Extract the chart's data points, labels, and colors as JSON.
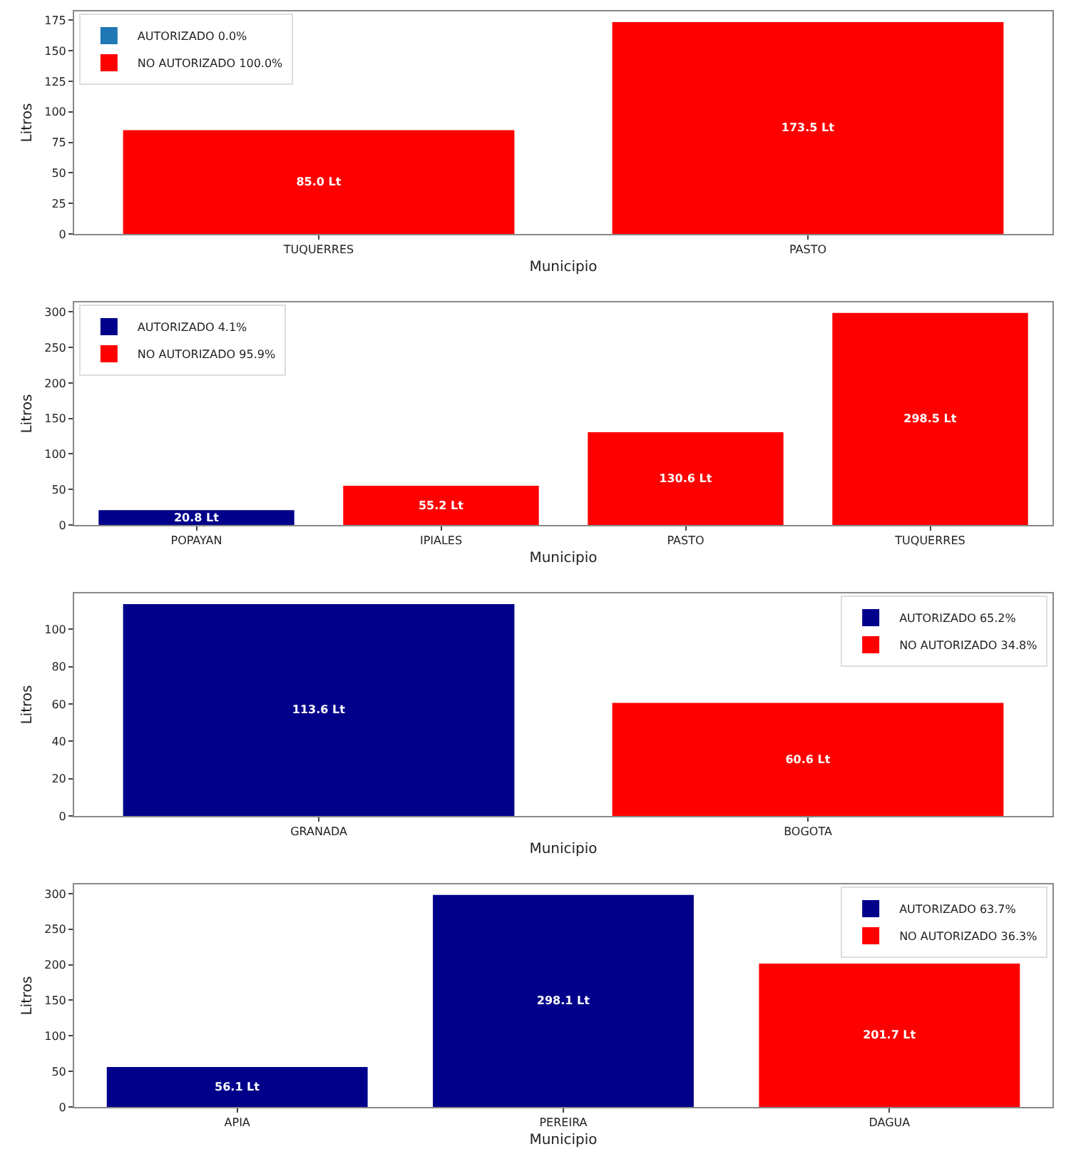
{
  "chart_data": [
    {
      "type": "bar",
      "categories": [
        "TUQUERRES",
        "PASTO"
      ],
      "xlabel": "Municipio",
      "ylabel": "Litros",
      "ylim": [
        0,
        182.2
      ],
      "yticks": [
        0,
        25,
        50,
        75,
        100,
        125,
        150,
        175
      ],
      "legend": "top left",
      "grid": false,
      "series": [
        {
          "name": "AUTORIZADO 0.0%",
          "color": "#1f77b4",
          "values": [
            null,
            null
          ],
          "value_labels": [
            null,
            null
          ]
        },
        {
          "name": "NO AUTORIZADO 100.0%",
          "color": "#ff0000",
          "values": [
            85.0,
            173.5
          ],
          "value_labels": [
            "85.0 Lt",
            "173.5 Lt"
          ]
        }
      ]
    },
    {
      "type": "bar",
      "categories": [
        "POPAYAN",
        "IPIALES",
        "PASTO",
        "TUQUERRES"
      ],
      "xlabel": "Municipio",
      "ylabel": "Litros",
      "ylim": [
        0,
        313.4
      ],
      "yticks": [
        0,
        50,
        100,
        150,
        200,
        250,
        300
      ],
      "legend": "top left",
      "grid": false,
      "series": [
        {
          "name": "AUTORIZADO 4.1%",
          "color": "#00008b",
          "values": [
            20.8,
            null,
            null,
            null
          ],
          "value_labels": [
            "20.8 Lt",
            null,
            null,
            null
          ]
        },
        {
          "name": "NO AUTORIZADO 95.9%",
          "color": "#ff0000",
          "values": [
            null,
            55.2,
            130.6,
            298.5
          ],
          "value_labels": [
            null,
            "55.2 Lt",
            "130.6 Lt",
            "298.5 Lt"
          ]
        }
      ]
    },
    {
      "type": "bar",
      "categories": [
        "GRANADA",
        "BOGOTA"
      ],
      "xlabel": "Municipio",
      "ylabel": "Litros",
      "ylim": [
        0,
        119.3
      ],
      "yticks": [
        0,
        20,
        40,
        60,
        80,
        100
      ],
      "legend": "top right",
      "grid": false,
      "series": [
        {
          "name": "AUTORIZADO 65.2%",
          "color": "#00008b",
          "values": [
            113.6,
            null
          ],
          "value_labels": [
            "113.6 Lt",
            null
          ]
        },
        {
          "name": "NO AUTORIZADO 34.8%",
          "color": "#ff0000",
          "values": [
            null,
            60.6
          ],
          "value_labels": [
            null,
            "60.6 Lt"
          ]
        }
      ]
    },
    {
      "type": "bar",
      "categories": [
        "APIA",
        "PEREIRA",
        "DAGUA"
      ],
      "xlabel": "Municipio",
      "ylabel": "Litros",
      "ylim": [
        0,
        313.0
      ],
      "yticks": [
        0,
        50,
        100,
        150,
        200,
        250,
        300
      ],
      "legend": "top right",
      "grid": false,
      "series": [
        {
          "name": "AUTORIZADO 63.7%",
          "color": "#00008b",
          "values": [
            56.1,
            298.1,
            null
          ],
          "value_labels": [
            "56.1 Lt",
            "298.1 Lt",
            null
          ]
        },
        {
          "name": "NO AUTORIZADO 36.3%",
          "color": "#ff0000",
          "values": [
            null,
            null,
            201.7
          ],
          "value_labels": [
            null,
            null,
            "201.7 Lt"
          ]
        }
      ]
    }
  ]
}
